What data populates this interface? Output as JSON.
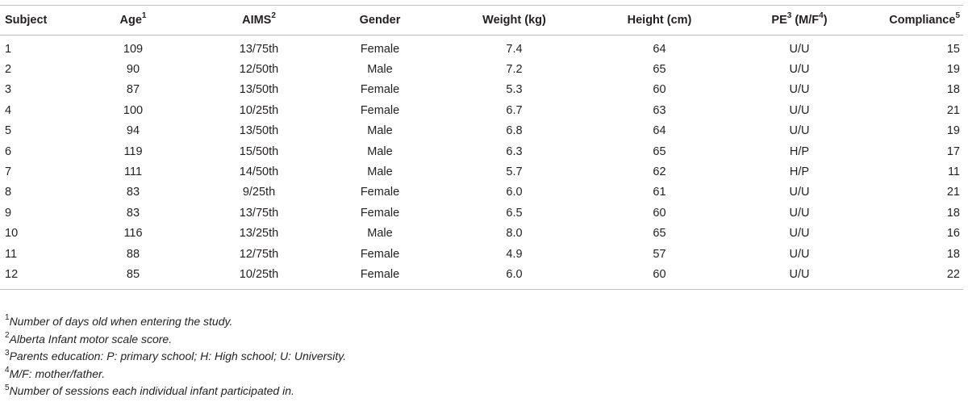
{
  "headers": [
    {
      "text": "Subject",
      "sup": ""
    },
    {
      "text": "Age",
      "sup": "1"
    },
    {
      "text": "AIMS",
      "sup": "2"
    },
    {
      "text": "Gender",
      "sup": ""
    },
    {
      "text": "Weight (kg)",
      "sup": ""
    },
    {
      "text": "Height (cm)",
      "sup": ""
    },
    {
      "text": "PE",
      "sup": "3",
      "text2": " (M/F",
      "sup2": "4",
      "text3": ")"
    },
    {
      "text": "Compliance",
      "sup": "5"
    }
  ],
  "rows": [
    [
      "1",
      "109",
      "13/75th",
      "Female",
      "7.4",
      "64",
      "U/U",
      "15"
    ],
    [
      "2",
      "90",
      "12/50th",
      "Male",
      "7.2",
      "65",
      "U/U",
      "19"
    ],
    [
      "3",
      "87",
      "13/50th",
      "Female",
      "5.3",
      "60",
      "U/U",
      "18"
    ],
    [
      "4",
      "100",
      "10/25th",
      "Female",
      "6.7",
      "63",
      "U/U",
      "21"
    ],
    [
      "5",
      "94",
      "13/50th",
      "Male",
      "6.8",
      "64",
      "U/U",
      "19"
    ],
    [
      "6",
      "119",
      "15/50th",
      "Male",
      "6.3",
      "65",
      "H/P",
      "17"
    ],
    [
      "7",
      "111",
      "14/50th",
      "Male",
      "5.7",
      "62",
      "H/P",
      "11"
    ],
    [
      "8",
      "83",
      "9/25th",
      "Female",
      "6.0",
      "61",
      "U/U",
      "21"
    ],
    [
      "9",
      "83",
      "13/75th",
      "Female",
      "6.5",
      "60",
      "U/U",
      "18"
    ],
    [
      "10",
      "116",
      "13/25th",
      "Male",
      "8.0",
      "65",
      "U/U",
      "16"
    ],
    [
      "11",
      "88",
      "12/75th",
      "Female",
      "4.9",
      "57",
      "U/U",
      "18"
    ],
    [
      "12",
      "85",
      "10/25th",
      "Female",
      "6.0",
      "60",
      "U/U",
      "22"
    ]
  ],
  "footnotes": [
    {
      "mark": "1",
      "text": "Number of days old when entering the study."
    },
    {
      "mark": "2",
      "text": "Alberta Infant motor scale score."
    },
    {
      "mark": "3",
      "text": "Parents education: P: primary school; H: High school; U: University."
    },
    {
      "mark": "4",
      "text": "M/F: mother/father."
    },
    {
      "mark": "5",
      "text": "Number of sessions each individual infant participated in."
    }
  ]
}
